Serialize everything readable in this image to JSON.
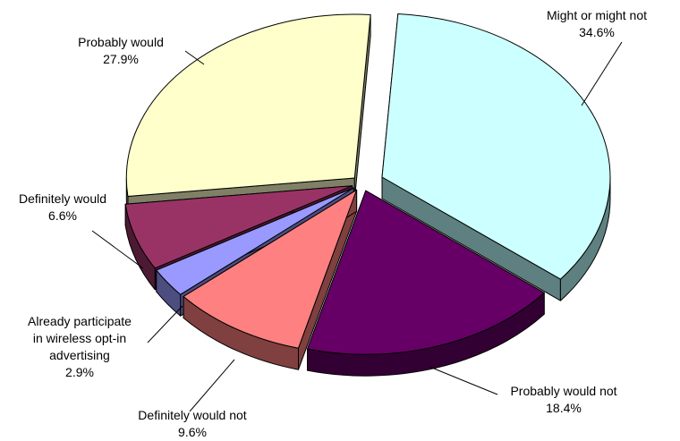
{
  "chart_data": {
    "type": "pie",
    "style": "3d-exploded",
    "slices": [
      {
        "label": "Might or might not",
        "value": 34.6,
        "value_label": "34.6%",
        "color": "#ccffff",
        "side_color": "#5f8080"
      },
      {
        "label": "Probably would not",
        "value": 18.4,
        "value_label": "18.4%",
        "color": "#660066",
        "side_color": "#330033"
      },
      {
        "label": "Definitely would not",
        "value": 9.6,
        "value_label": "9.6%",
        "color": "#ff8080",
        "side_color": "#804040"
      },
      {
        "label": "Already participate in wireless opt-in advertising",
        "label_lines": [
          "Already participate",
          "in wireless opt-in",
          "advertising"
        ],
        "value": 2.9,
        "value_label": "2.9%",
        "color": "#9999ff",
        "side_color": "#4d4d80"
      },
      {
        "label": "Definitely would",
        "value": 6.6,
        "value_label": "6.6%",
        "color": "#993366",
        "side_color": "#4d1a33"
      },
      {
        "label": "Probably would",
        "value": 27.9,
        "value_label": "27.9%",
        "color": "#ffffcc",
        "side_color": "#808066"
      }
    ]
  }
}
